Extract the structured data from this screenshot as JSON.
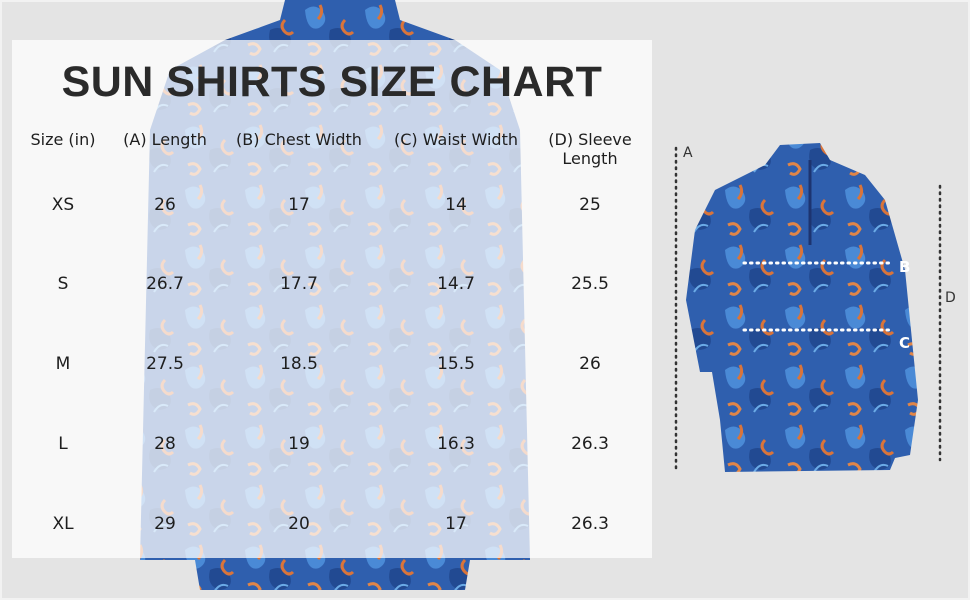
{
  "title": "SUN SHIRTS SIZE CHART",
  "table": {
    "headers": [
      "Size (in)",
      "(A) Length",
      "(B) Chest Width",
      "(C) Waist Width",
      "(D) Sleeve\nLength"
    ],
    "rows": [
      [
        "XS",
        "26",
        "17",
        "14",
        "25"
      ],
      [
        "S",
        "26.7",
        "17.7",
        "14.7",
        "25.5"
      ],
      [
        "M",
        "27.5",
        "18.5",
        "15.5",
        "26"
      ],
      [
        "L",
        "28",
        "19",
        "16.3",
        "26.3"
      ],
      [
        "XL",
        "29",
        "20",
        "17",
        "26.3"
      ]
    ]
  },
  "diagram": {
    "label_a": "A",
    "label_b": "B",
    "label_c": "C",
    "label_d": "D"
  },
  "colors": {
    "shirt_blue": "#2c5aa8",
    "pattern_orange": "#d9743a",
    "background": "#e4e4e4"
  }
}
